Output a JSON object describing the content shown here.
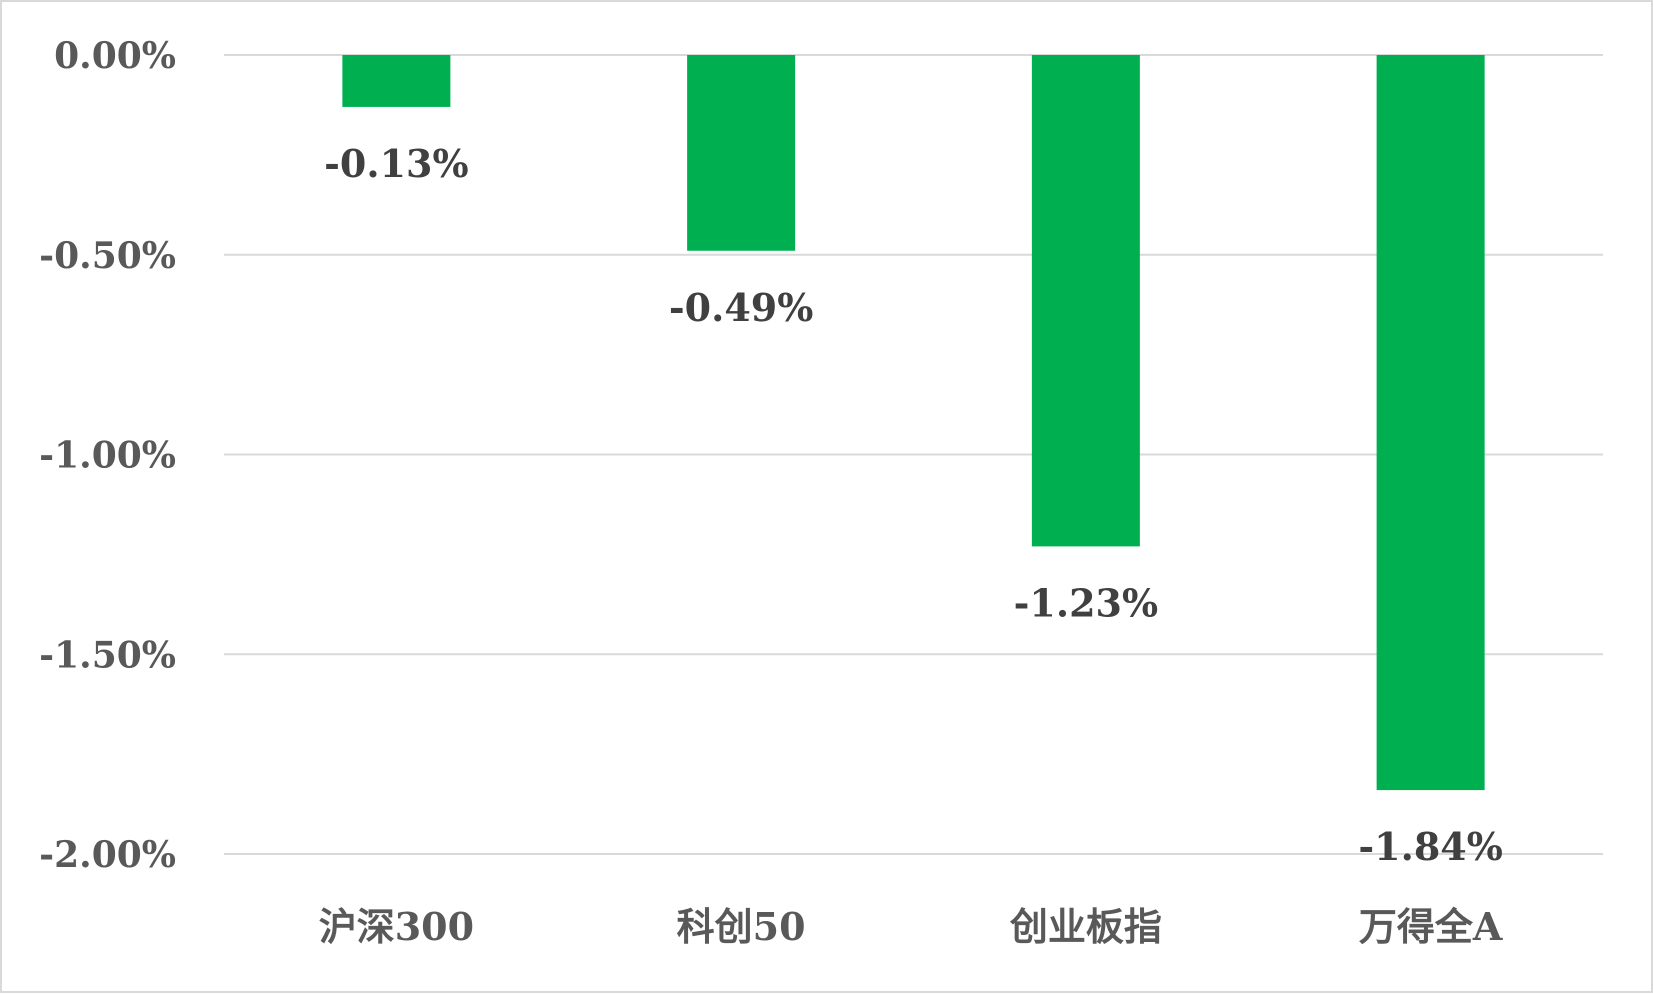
{
  "chart_data": {
    "type": "bar",
    "categories": [
      "沪深300",
      "科创50",
      "创业板指",
      "万得全A"
    ],
    "values": [
      -0.13,
      -0.49,
      -1.23,
      -1.84
    ],
    "data_labels": [
      "-0.13%",
      "-0.49%",
      "-1.23%",
      "-1.84%"
    ],
    "y_ticks": [
      0,
      -0.5,
      -1.0,
      -1.5,
      -2.0
    ],
    "y_tick_labels": [
      "0.00%",
      "-0.50%",
      "-1.00%",
      "-1.50%",
      "-2.00%"
    ],
    "ylim": [
      -2.0,
      0
    ],
    "unit": "%",
    "grid": true,
    "legend": "none",
    "bar_color": "#00b050",
    "title": "",
    "xlabel": "",
    "ylabel": ""
  }
}
